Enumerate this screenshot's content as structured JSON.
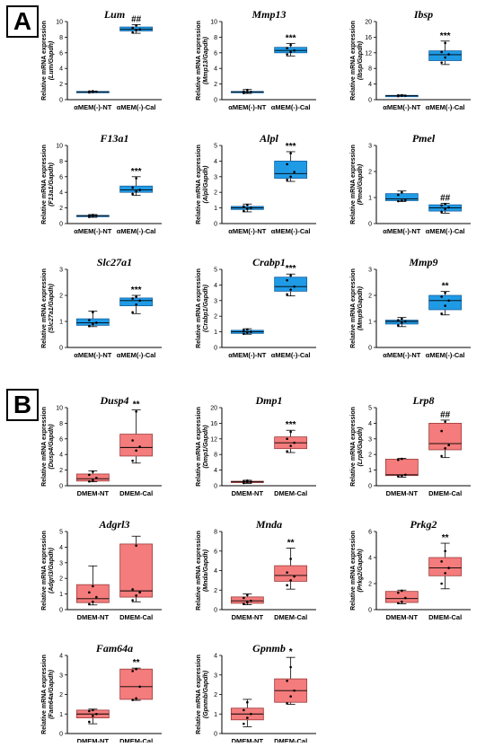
{
  "panels": [
    {
      "label": "A",
      "color": "#1f9be6",
      "stroke": "#1560a0"
    },
    {
      "label": "B",
      "color": "#f47c7c",
      "stroke": "#9c3a3a"
    }
  ],
  "chart_data": [
    {
      "type": "box",
      "panel": "A",
      "title": "Lum",
      "ylabel": "Relative mRNA expression",
      "ylabel2": "(Lum/Gapdh)",
      "ylim": [
        0,
        10
      ],
      "yticks": [
        0,
        2,
        4,
        6,
        8,
        10
      ],
      "categories": [
        "αMEM(-)-NT",
        "αMEM(-)-Cal"
      ],
      "significance": "##",
      "boxes": [
        {
          "min": 0.9,
          "q1": 0.95,
          "median": 1.0,
          "q3": 1.05,
          "max": 1.1,
          "points": [
            0.92,
            0.98,
            1.02,
            1.05,
            1.08
          ]
        },
        {
          "min": 8.5,
          "q1": 8.8,
          "median": 9.0,
          "q3": 9.3,
          "max": 9.6,
          "points": [
            8.6,
            8.9,
            9.0,
            9.2,
            9.5
          ]
        }
      ]
    },
    {
      "type": "box",
      "panel": "A",
      "title": "Mmp13",
      "ylabel": "Relative mRNA expression",
      "ylabel2": "(Mmp13/Gapdh)",
      "ylim": [
        0,
        10
      ],
      "yticks": [
        0,
        2,
        4,
        6,
        8,
        10
      ],
      "categories": [
        "αMEM(-)-NT",
        "αMEM(-)-Cal"
      ],
      "significance": "***",
      "boxes": [
        {
          "min": 0.8,
          "q1": 0.9,
          "median": 1.0,
          "q3": 1.05,
          "max": 1.3,
          "points": [
            0.85,
            0.95,
            1.0,
            1.05,
            1.25
          ]
        },
        {
          "min": 5.6,
          "q1": 6.0,
          "median": 6.3,
          "q3": 6.7,
          "max": 7.2,
          "points": [
            5.8,
            6.1,
            6.3,
            6.6,
            7.0
          ]
        }
      ]
    },
    {
      "type": "box",
      "panel": "A",
      "title": "Ibsp",
      "ylabel": "Relative mRNA expression",
      "ylabel2": "(Ibsp/Gapdh)",
      "ylim": [
        0,
        20
      ],
      "yticks": [
        0,
        4,
        8,
        12,
        16,
        20
      ],
      "categories": [
        "αMEM(-)-NT",
        "αMEM(-)-Cal"
      ],
      "significance": "***",
      "boxes": [
        {
          "min": 0.8,
          "q1": 0.9,
          "median": 1.0,
          "q3": 1.1,
          "max": 1.2,
          "points": [
            0.9,
            1.0,
            1.0,
            1.1,
            1.15
          ]
        },
        {
          "min": 9.0,
          "q1": 10.0,
          "median": 11.5,
          "q3": 12.5,
          "max": 15.0,
          "points": [
            9.5,
            10.8,
            11.6,
            12.2,
            14.5
          ]
        }
      ]
    },
    {
      "type": "box",
      "panel": "A",
      "title": "F13a1",
      "ylabel": "Relative mRNA expression",
      "ylabel2": "(F13a1/Gapdh)",
      "ylim": [
        0,
        10
      ],
      "yticks": [
        0,
        2,
        4,
        6,
        8,
        10
      ],
      "categories": [
        "αMEM(-)-NT",
        "αMEM(-)-Cal"
      ],
      "significance": "***",
      "boxes": [
        {
          "min": 0.8,
          "q1": 0.9,
          "median": 1.0,
          "q3": 1.05,
          "max": 1.15,
          "points": [
            0.85,
            0.95,
            1.0,
            1.05,
            1.1
          ]
        },
        {
          "min": 3.6,
          "q1": 4.0,
          "median": 4.3,
          "q3": 4.8,
          "max": 6.0,
          "points": [
            3.8,
            4.1,
            4.3,
            4.6,
            5.8
          ]
        }
      ]
    },
    {
      "type": "box",
      "panel": "A",
      "title": "Alpl",
      "ylabel": "Relative mRNA expression",
      "ylabel2": "(Alpl/Gapdh)",
      "ylim": [
        0,
        5
      ],
      "yticks": [
        0,
        1,
        2,
        3,
        4,
        5
      ],
      "categories": [
        "αMEM(-)-NT",
        "αMEM(-)-Cal"
      ],
      "significance": "***",
      "boxes": [
        {
          "min": 0.75,
          "q1": 0.9,
          "median": 1.0,
          "q3": 1.1,
          "max": 1.25,
          "points": [
            0.8,
            0.95,
            1.0,
            1.1,
            1.2
          ]
        },
        {
          "min": 2.7,
          "q1": 2.9,
          "median": 3.2,
          "q3": 4.0,
          "max": 4.6,
          "points": [
            2.8,
            3.0,
            3.3,
            3.8,
            4.5
          ]
        }
      ]
    },
    {
      "type": "box",
      "panel": "A",
      "title": "Pmel",
      "ylabel": "Relative mRNA expression",
      "ylabel2": "(Pmel/Gapdh)",
      "ylim": [
        0,
        3
      ],
      "yticks": [
        0,
        1,
        2,
        3
      ],
      "categories": [
        "αMEM(-)-NT",
        "αMEM(-)-Cal"
      ],
      "significance": "##",
      "boxes": [
        {
          "min": 0.85,
          "q1": 0.88,
          "median": 0.95,
          "q3": 1.15,
          "max": 1.25,
          "points": [
            0.86,
            0.88,
            0.9,
            1.1,
            1.2
          ]
        },
        {
          "min": 0.4,
          "q1": 0.48,
          "median": 0.6,
          "q3": 0.72,
          "max": 0.78,
          "points": [
            0.45,
            0.55,
            0.62,
            0.7,
            0.75
          ]
        }
      ]
    },
    {
      "type": "box",
      "panel": "A",
      "title": "Slc27a1",
      "ylabel": "Relative mRNA expression",
      "ylabel2": "(Slc27a1/Gapdh)",
      "ylim": [
        0,
        3
      ],
      "yticks": [
        0,
        1,
        2,
        3
      ],
      "categories": [
        "αMEM(-)-NT",
        "αMEM(-)-Cal"
      ],
      "significance": "***",
      "boxes": [
        {
          "min": 0.8,
          "q1": 0.85,
          "median": 0.95,
          "q3": 1.1,
          "max": 1.4,
          "points": [
            0.82,
            0.9,
            0.95,
            1.05,
            1.35
          ]
        },
        {
          "min": 1.3,
          "q1": 1.6,
          "median": 1.8,
          "q3": 1.9,
          "max": 2.0,
          "points": [
            1.35,
            1.65,
            1.8,
            1.88,
            1.95
          ]
        }
      ]
    },
    {
      "type": "box",
      "panel": "A",
      "title": "Crabp1",
      "ylabel": "Relative mRNA expression",
      "ylabel2": "(Crabp1/Gapdh)",
      "ylim": [
        0,
        5
      ],
      "yticks": [
        0,
        1,
        2,
        3,
        4,
        5
      ],
      "categories": [
        "αMEM(-)-NT",
        "αMEM(-)-Cal"
      ],
      "significance": "***",
      "boxes": [
        {
          "min": 0.85,
          "q1": 0.9,
          "median": 1.0,
          "q3": 1.1,
          "max": 1.2,
          "points": [
            0.88,
            0.95,
            1.0,
            1.1,
            1.15
          ]
        },
        {
          "min": 3.3,
          "q1": 3.6,
          "median": 3.9,
          "q3": 4.5,
          "max": 4.7,
          "points": [
            3.4,
            3.7,
            3.9,
            4.3,
            4.6
          ]
        }
      ]
    },
    {
      "type": "box",
      "panel": "A",
      "title": "Mmp9",
      "ylabel": "Relative mRNA expression",
      "ylabel2": "(Mmp9/Gapdh)",
      "ylim": [
        0,
        3
      ],
      "yticks": [
        0,
        1,
        2,
        3
      ],
      "categories": [
        "αMEM(-)-NT",
        "αMEM(-)-Cal"
      ],
      "significance": "**",
      "boxes": [
        {
          "min": 0.8,
          "q1": 0.9,
          "median": 1.0,
          "q3": 1.05,
          "max": 1.15,
          "points": [
            0.85,
            0.95,
            1.0,
            1.05,
            1.1
          ]
        },
        {
          "min": 1.25,
          "q1": 1.45,
          "median": 1.8,
          "q3": 2.0,
          "max": 2.15,
          "points": [
            1.3,
            1.6,
            1.8,
            1.95,
            2.1
          ]
        }
      ]
    },
    {
      "type": "box",
      "panel": "B",
      "title": "Dusp4",
      "ylabel": "Relative mRNA expression",
      "ylabel2": "(Dusp4/Gapdh)",
      "ylim": [
        0,
        10
      ],
      "yticks": [
        0,
        2,
        4,
        6,
        8,
        10
      ],
      "categories": [
        "DMEM-NT",
        "DMEM-Cal"
      ],
      "significance": "**",
      "boxes": [
        {
          "min": 0.5,
          "q1": 0.6,
          "median": 0.9,
          "q3": 1.5,
          "max": 1.9,
          "points": [
            0.55,
            0.7,
            1.0,
            1.4,
            1.8
          ]
        },
        {
          "min": 2.9,
          "q1": 3.8,
          "median": 4.9,
          "q3": 6.6,
          "max": 9.7,
          "points": [
            3.2,
            4.5,
            5.0,
            5.8,
            9.5
          ]
        }
      ]
    },
    {
      "type": "box",
      "panel": "B",
      "title": "Dmp1",
      "ylabel": "Relative mRNA expression",
      "ylabel2": "(Dmp1/Gapdh)",
      "ylim": [
        0,
        20
      ],
      "yticks": [
        0,
        4,
        8,
        12,
        16,
        20
      ],
      "categories": [
        "DMEM-NT",
        "DMEM-Cal"
      ],
      "significance": "***",
      "boxes": [
        {
          "min": 0.6,
          "q1": 0.8,
          "median": 1.0,
          "q3": 1.15,
          "max": 1.4,
          "points": [
            0.7,
            0.9,
            1.0,
            1.1,
            1.3
          ]
        },
        {
          "min": 8.5,
          "q1": 9.5,
          "median": 11.0,
          "q3": 12.5,
          "max": 14.2,
          "points": [
            8.8,
            10.2,
            11.0,
            12.0,
            13.8
          ]
        }
      ]
    },
    {
      "type": "box",
      "panel": "B",
      "title": "Lrp8",
      "ylabel": "Relative mRNA expression",
      "ylabel2": "(Lrp8/Gapdh)",
      "ylim": [
        0,
        5
      ],
      "yticks": [
        0,
        1,
        2,
        3,
        4,
        5
      ],
      "categories": [
        "DMEM-NT",
        "DMEM-Cal"
      ],
      "significance": "##",
      "boxes": [
        {
          "min": 0.55,
          "q1": 0.65,
          "median": 0.7,
          "q3": 1.7,
          "max": 1.75,
          "points": [
            0.6,
            0.65,
            0.7,
            1.65,
            1.72
          ]
        },
        {
          "min": 1.8,
          "q1": 2.3,
          "median": 2.7,
          "q3": 4.0,
          "max": 4.2,
          "points": [
            1.9,
            2.4,
            2.6,
            3.5,
            4.1
          ]
        }
      ]
    },
    {
      "type": "box",
      "panel": "B",
      "title": "Adgrl3",
      "ylabel": "Relative mRNA expression",
      "ylabel2": "(Adgrl3/Gapdh)",
      "ylim": [
        0,
        5
      ],
      "yticks": [
        0,
        1,
        2,
        3,
        4,
        5
      ],
      "categories": [
        "DMEM-NT",
        "DMEM-Cal"
      ],
      "significance": "",
      "boxes": [
        {
          "min": 0.3,
          "q1": 0.45,
          "median": 0.7,
          "q3": 1.6,
          "max": 2.8,
          "points": [
            0.35,
            0.5,
            0.8,
            1.1,
            1.5
          ]
        },
        {
          "min": 0.5,
          "q1": 0.8,
          "median": 1.2,
          "q3": 4.2,
          "max": 4.7,
          "points": [
            0.6,
            0.9,
            1.1,
            1.3,
            4.1
          ]
        }
      ]
    },
    {
      "type": "box",
      "panel": "B",
      "title": "Mnda",
      "ylabel": "Relative mRNA expression",
      "ylabel2": "(Mnda/Gapdh)",
      "ylim": [
        0,
        8
      ],
      "yticks": [
        0,
        2,
        4,
        6,
        8
      ],
      "categories": [
        "DMEM-NT",
        "DMEM-Cal"
      ],
      "significance": "**",
      "boxes": [
        {
          "min": 0.5,
          "q1": 0.65,
          "median": 0.9,
          "q3": 1.3,
          "max": 1.6,
          "points": [
            0.6,
            0.75,
            0.9,
            1.2,
            1.5
          ]
        },
        {
          "min": 2.1,
          "q1": 2.9,
          "median": 3.5,
          "q3": 4.5,
          "max": 6.3,
          "points": [
            2.5,
            3.0,
            3.4,
            3.8,
            5.2
          ]
        }
      ]
    },
    {
      "type": "box",
      "panel": "B",
      "title": "Prkg2",
      "ylabel": "Relative mRNA expression",
      "ylabel2": "(Prkg2/Gapdh)",
      "ylim": [
        0,
        6
      ],
      "yticks": [
        0,
        2,
        4,
        6
      ],
      "categories": [
        "DMEM-NT",
        "DMEM-Cal"
      ],
      "significance": "**",
      "boxes": [
        {
          "min": 0.45,
          "q1": 0.55,
          "median": 0.85,
          "q3": 1.4,
          "max": 1.5,
          "points": [
            0.5,
            0.6,
            0.9,
            1.3,
            1.45
          ]
        },
        {
          "min": 1.6,
          "q1": 2.6,
          "median": 3.2,
          "q3": 4.0,
          "max": 5.1,
          "points": [
            2.0,
            2.8,
            3.2,
            3.7,
            4.5
          ]
        }
      ]
    },
    {
      "type": "box",
      "panel": "B",
      "title": "Fam64a",
      "ylabel": "Relative mRNA expression",
      "ylabel2": "(Fam64a/Gapdh)",
      "ylim": [
        0,
        4
      ],
      "yticks": [
        0,
        1,
        2,
        3,
        4
      ],
      "categories": [
        "DMEM-NT",
        "DMEM-Cal"
      ],
      "significance": "**",
      "boxes": [
        {
          "min": 0.5,
          "q1": 0.8,
          "median": 1.0,
          "q3": 1.2,
          "max": 1.25,
          "points": [
            0.6,
            0.9,
            1.0,
            1.15,
            1.2
          ]
        },
        {
          "min": 1.7,
          "q1": 1.75,
          "median": 2.4,
          "q3": 3.3,
          "max": 3.35,
          "points": [
            1.72,
            1.8,
            2.4,
            3.2,
            3.3
          ]
        }
      ]
    },
    {
      "type": "box",
      "panel": "B",
      "title": "Gpnmb",
      "ylabel": "Relative mRNA expression",
      "ylabel2": "(Gpnmb/Gapdh)",
      "ylim": [
        0,
        4
      ],
      "yticks": [
        0,
        1,
        2,
        3,
        4
      ],
      "categories": [
        "DMEM-NT",
        "DMEM-Cal"
      ],
      "significance": "*",
      "boxes": [
        {
          "min": 0.35,
          "q1": 0.7,
          "median": 1.0,
          "q3": 1.3,
          "max": 1.75,
          "points": [
            0.5,
            0.8,
            1.0,
            1.2,
            1.6
          ]
        },
        {
          "min": 1.5,
          "q1": 1.6,
          "median": 2.2,
          "q3": 2.8,
          "max": 3.9,
          "points": [
            1.55,
            1.9,
            2.2,
            2.7,
            3.4
          ]
        }
      ]
    }
  ]
}
